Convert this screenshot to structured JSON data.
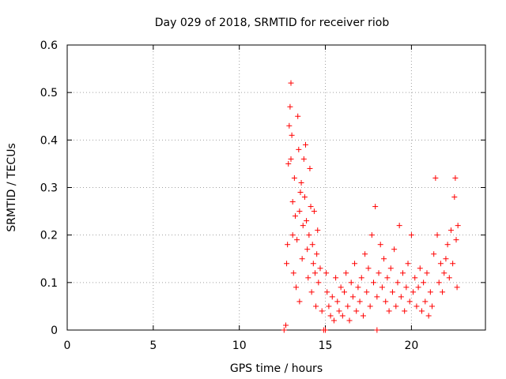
{
  "chart_data": {
    "type": "scatter",
    "title": "Day 029 of 2018, SRMTID for receiver riob",
    "xlabel": "GPS time / hours",
    "ylabel": "SRMTID / TECUs",
    "xlim": [
      0,
      24.3
    ],
    "ylim": [
      0,
      0.6
    ],
    "xticks": [
      0,
      5,
      10,
      15,
      20
    ],
    "yticks": [
      0,
      0.1,
      0.2,
      0.3,
      0.4,
      0.5,
      0.6
    ],
    "xtick_labels": [
      "0",
      "5",
      "10",
      "15",
      "20"
    ],
    "ytick_labels": [
      "0",
      "0.1",
      "0.2",
      "0.3",
      "0.4",
      "0.5",
      "0.6"
    ],
    "grid": true,
    "marker": "+",
    "color": "#ff0000",
    "series": [
      {
        "name": "SRMTID",
        "points": [
          [
            12.6,
            0.0
          ],
          [
            12.7,
            0.01
          ],
          [
            12.75,
            0.14
          ],
          [
            12.8,
            0.18
          ],
          [
            12.85,
            0.35
          ],
          [
            12.9,
            0.43
          ],
          [
            12.95,
            0.47
          ],
          [
            13.0,
            0.52
          ],
          [
            13.0,
            0.36
          ],
          [
            13.05,
            0.41
          ],
          [
            13.1,
            0.27
          ],
          [
            13.1,
            0.2
          ],
          [
            13.15,
            0.12
          ],
          [
            13.2,
            0.32
          ],
          [
            13.25,
            0.24
          ],
          [
            13.3,
            0.09
          ],
          [
            13.35,
            0.19
          ],
          [
            13.4,
            0.45
          ],
          [
            13.45,
            0.38
          ],
          [
            13.5,
            0.25
          ],
          [
            13.5,
            0.06
          ],
          [
            13.55,
            0.29
          ],
          [
            13.6,
            0.31
          ],
          [
            13.65,
            0.15
          ],
          [
            13.7,
            0.22
          ],
          [
            13.75,
            0.36
          ],
          [
            13.8,
            0.28
          ],
          [
            13.85,
            0.39
          ],
          [
            13.9,
            0.23
          ],
          [
            13.95,
            0.17
          ],
          [
            14.0,
            0.11
          ],
          [
            14.05,
            0.2
          ],
          [
            14.1,
            0.34
          ],
          [
            14.15,
            0.26
          ],
          [
            14.2,
            0.08
          ],
          [
            14.25,
            0.18
          ],
          [
            14.3,
            0.14
          ],
          [
            14.35,
            0.25
          ],
          [
            14.4,
            0.12
          ],
          [
            14.45,
            0.05
          ],
          [
            14.5,
            0.16
          ],
          [
            14.55,
            0.21
          ],
          [
            14.6,
            0.1
          ],
          [
            14.7,
            0.13
          ],
          [
            14.8,
            0.04
          ],
          [
            14.9,
            0.0
          ],
          [
            15.0,
            0.0
          ],
          [
            15.05,
            0.12
          ],
          [
            15.1,
            0.08
          ],
          [
            15.2,
            0.05
          ],
          [
            15.3,
            0.03
          ],
          [
            15.4,
            0.07
          ],
          [
            15.5,
            0.02
          ],
          [
            15.6,
            0.11
          ],
          [
            15.7,
            0.06
          ],
          [
            15.8,
            0.04
          ],
          [
            15.9,
            0.09
          ],
          [
            16.0,
            0.03
          ],
          [
            16.1,
            0.08
          ],
          [
            16.2,
            0.12
          ],
          [
            16.3,
            0.05
          ],
          [
            16.4,
            0.02
          ],
          [
            16.5,
            0.1
          ],
          [
            16.6,
            0.07
          ],
          [
            16.7,
            0.14
          ],
          [
            16.8,
            0.04
          ],
          [
            16.9,
            0.09
          ],
          [
            17.0,
            0.06
          ],
          [
            17.1,
            0.11
          ],
          [
            17.2,
            0.03
          ],
          [
            17.3,
            0.16
          ],
          [
            17.4,
            0.08
          ],
          [
            17.5,
            0.13
          ],
          [
            17.6,
            0.05
          ],
          [
            17.7,
            0.2
          ],
          [
            17.8,
            0.1
          ],
          [
            17.9,
            0.26
          ],
          [
            18.0,
            0.0
          ],
          [
            18.0,
            0.07
          ],
          [
            18.1,
            0.12
          ],
          [
            18.2,
            0.18
          ],
          [
            18.3,
            0.09
          ],
          [
            18.4,
            0.15
          ],
          [
            18.5,
            0.06
          ],
          [
            18.6,
            0.11
          ],
          [
            18.7,
            0.04
          ],
          [
            18.8,
            0.13
          ],
          [
            18.9,
            0.08
          ],
          [
            19.0,
            0.17
          ],
          [
            19.1,
            0.05
          ],
          [
            19.2,
            0.1
          ],
          [
            19.3,
            0.22
          ],
          [
            19.4,
            0.07
          ],
          [
            19.5,
            0.12
          ],
          [
            19.6,
            0.04
          ],
          [
            19.7,
            0.09
          ],
          [
            19.8,
            0.14
          ],
          [
            19.9,
            0.06
          ],
          [
            20.0,
            0.2
          ],
          [
            20.1,
            0.08
          ],
          [
            20.2,
            0.11
          ],
          [
            20.3,
            0.05
          ],
          [
            20.4,
            0.09
          ],
          [
            20.5,
            0.13
          ],
          [
            20.6,
            0.04
          ],
          [
            20.7,
            0.1
          ],
          [
            20.8,
            0.06
          ],
          [
            20.9,
            0.12
          ],
          [
            21.0,
            0.03
          ],
          [
            21.1,
            0.08
          ],
          [
            21.2,
            0.05
          ],
          [
            21.3,
            0.16
          ],
          [
            21.4,
            0.32
          ],
          [
            21.5,
            0.2
          ],
          [
            21.6,
            0.1
          ],
          [
            21.7,
            0.14
          ],
          [
            21.8,
            0.08
          ],
          [
            21.9,
            0.12
          ],
          [
            22.0,
            0.15
          ],
          [
            22.1,
            0.18
          ],
          [
            22.2,
            0.11
          ],
          [
            22.3,
            0.21
          ],
          [
            22.4,
            0.14
          ],
          [
            22.5,
            0.28
          ],
          [
            22.55,
            0.32
          ],
          [
            22.6,
            0.19
          ],
          [
            22.65,
            0.09
          ],
          [
            22.7,
            0.22
          ]
        ]
      }
    ]
  }
}
